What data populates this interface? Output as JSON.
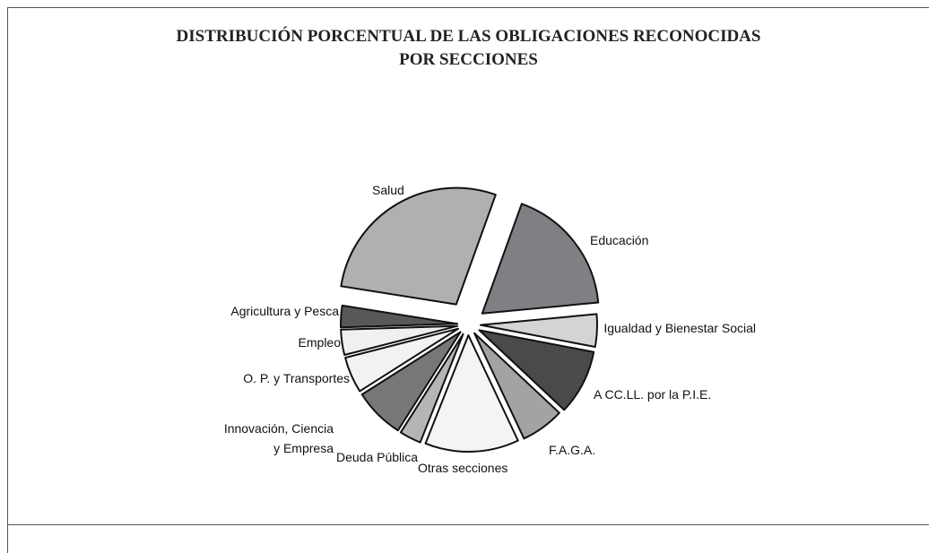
{
  "chart_data": {
    "type": "pie",
    "title": "DISTRIBUCIÓN PORCENTUAL DE LAS OBLIGACIONES RECONOCIDAS",
    "subtitle": "POR SECCIONES",
    "categories": [
      "Salud",
      "Educación",
      "Igualdad y Bienestar Social",
      "A CC.LL. por la P.I.E.",
      "F.A.G.A.",
      "Otras secciones",
      "Deuda Pública",
      "Innovación, Ciencia y Empresa",
      "O. P. y Transportes",
      "Empleo",
      "Agricultura y Pesca"
    ],
    "values": [
      28,
      18,
      4.5,
      9,
      6,
      13,
      3,
      7,
      5,
      3.5,
      3
    ],
    "colors": [
      "#b0b0b3",
      "#808084",
      "#d4d4d6",
      "#4a4a4d",
      "#a3a3a6",
      "#f4f4f4",
      "#b5b5b8",
      "#77777a",
      "#f2f2f2",
      "#f0f0f0",
      "#58585b"
    ]
  }
}
